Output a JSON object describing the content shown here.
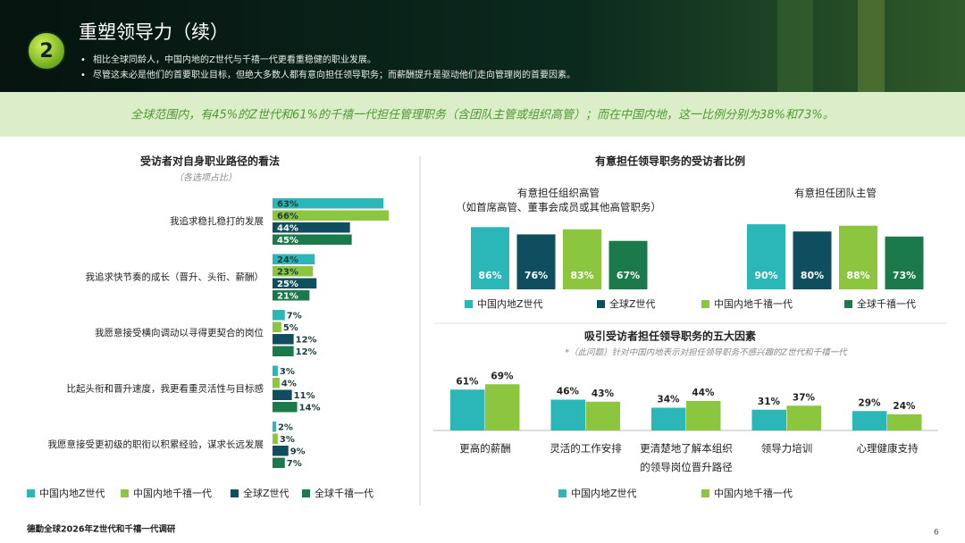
{
  "header": {
    "badge": "2",
    "title": "重塑领导力（续）",
    "bullets": [
      "相比全球同龄人，中国内地的Z世代与千禧一代更看重稳健的职业发展。",
      "尽管这未必是他们的首要职业目标，但绝大多数人都有意向担任领导职务；而薪酬提升是驱动他们走向管理岗的首要因素。"
    ]
  },
  "banner": "全球范围内，有45%的Z世代和61%的千禧一代担任管理职务（含团队主管或组织高管）；而在中国内地，这一比例分别为38%和73%。",
  "chart_data": [
    {
      "type": "hbar",
      "title": "受访者对自身职业路径的看法",
      "subtitle": "（各选项占比）",
      "categories": [
        "我追求稳扎稳打的发展",
        "我追求快节奏的成长（晋升、头衔、薪酬）",
        "我愿意接受横向调动以寻得更契合的岗位",
        "比起头衔和晋升速度，我更看重灵活性与目标感",
        "我愿意接受更初级的职衔以积累经验，谋求长远发展"
      ],
      "series": [
        {
          "name": "中国内地Z世代",
          "color": "#2bb6b8",
          "values": [
            63,
            24,
            7,
            3,
            2
          ],
          "value_labels": [
            "63%",
            "24%",
            "7%",
            "3%",
            "2%"
          ]
        },
        {
          "name": "中国内地千禧一代",
          "color": "#8cc63f",
          "values": [
            66,
            23,
            5,
            4,
            3
          ],
          "value_labels": [
            "66%",
            "23%",
            "5%",
            "4%",
            "3%"
          ]
        },
        {
          "name": "全球Z世代",
          "color": "#0f4e5e",
          "values": [
            44,
            25,
            12,
            11,
            9
          ],
          "value_labels": [
            "44%",
            "25%",
            "12%",
            "11%",
            "9%"
          ]
        },
        {
          "name": "全球千禧一代",
          "color": "#1b7a4b",
          "values": [
            45,
            21,
            12,
            14,
            7
          ],
          "value_labels": [
            "45%",
            "21%",
            "12%",
            "14%",
            "7%"
          ]
        }
      ]
    },
    {
      "type": "bar",
      "title": "有意担任领导职务的受访者比例",
      "categories": [
        "有意担任组织高管\n（如首席高管、董事会成员或其他高管职务）",
        "有意担任团队主管"
      ],
      "series": [
        {
          "name": "中国内地Z世代",
          "color": "#2bb6b8",
          "values": [
            86,
            90
          ],
          "value_labels": [
            "86%",
            "90%"
          ]
        },
        {
          "name": "全球Z世代",
          "color": "#0f4e5e",
          "values": [
            76,
            80
          ],
          "value_labels": [
            "76%",
            "80%"
          ]
        },
        {
          "name": "中国内地千禧一代",
          "color": "#8cc63f",
          "values": [
            83,
            88
          ],
          "value_labels": [
            "83%",
            "88%"
          ]
        },
        {
          "name": "全球千禧一代",
          "color": "#1b7a4b",
          "values": [
            67,
            73
          ],
          "value_labels": [
            "67%",
            "73%"
          ]
        }
      ]
    },
    {
      "type": "bar",
      "title": "吸引受访者担任领导职务的五大因素",
      "subtitle": "*（此问题）针对中国内地表示对担任领导职务不感兴趣的Z世代和千禧一代",
      "categories": [
        "更高的薪酬",
        "灵活的工作安排",
        "更清楚地了解本组织的领导岗位晋升路径",
        "领导力培训",
        "心理健康支持"
      ],
      "series": [
        {
          "name": "中国内地Z世代",
          "color": "#2bb6b8",
          "values": [
            61,
            46,
            34,
            31,
            29
          ],
          "value_labels": [
            "61%",
            "46%",
            "34%",
            "31%",
            "29%"
          ]
        },
        {
          "name": "中国内地千禧一代",
          "color": "#8cc63f",
          "values": [
            69,
            43,
            44,
            37,
            24
          ],
          "value_labels": [
            "69%",
            "43%",
            "44%",
            "37%",
            "24%"
          ]
        }
      ]
    }
  ],
  "footer": {
    "source": "德勤全球2026年Z世代和千禧一代调研",
    "page": "6"
  }
}
